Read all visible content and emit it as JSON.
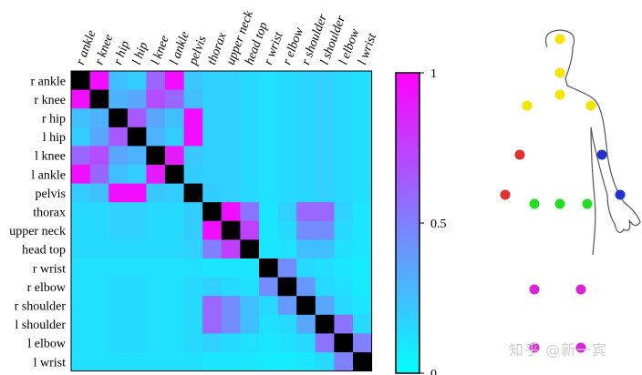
{
  "chart_data": {
    "type": "heatmap",
    "labels": [
      "r ankle",
      "r knee",
      "r hip",
      "l hip",
      "l knee",
      "l ankle",
      "pelvis",
      "thorax",
      "upper neck",
      "head top",
      "r wrist",
      "r elbow",
      "r shoulder",
      "l shoulder",
      "l elbow",
      "l wrist"
    ],
    "matrix": [
      [
        1.0,
        0.95,
        0.25,
        0.2,
        0.6,
        0.95,
        0.22,
        0.18,
        0.18,
        0.15,
        0.12,
        0.14,
        0.16,
        0.18,
        0.15,
        0.12
      ],
      [
        0.95,
        1.0,
        0.3,
        0.35,
        0.7,
        0.6,
        0.25,
        0.18,
        0.18,
        0.15,
        0.12,
        0.14,
        0.16,
        0.18,
        0.15,
        0.12
      ],
      [
        0.25,
        0.3,
        1.0,
        0.65,
        0.35,
        0.25,
        0.95,
        0.18,
        0.18,
        0.15,
        0.12,
        0.14,
        0.16,
        0.18,
        0.15,
        0.12
      ],
      [
        0.2,
        0.35,
        0.65,
        1.0,
        0.3,
        0.2,
        0.95,
        0.18,
        0.18,
        0.15,
        0.12,
        0.14,
        0.16,
        0.18,
        0.15,
        0.12
      ],
      [
        0.6,
        0.7,
        0.35,
        0.3,
        1.0,
        0.9,
        0.22,
        0.18,
        0.18,
        0.15,
        0.12,
        0.14,
        0.16,
        0.18,
        0.15,
        0.12
      ],
      [
        0.95,
        0.6,
        0.25,
        0.2,
        0.9,
        1.0,
        0.2,
        0.18,
        0.18,
        0.15,
        0.12,
        0.14,
        0.16,
        0.18,
        0.15,
        0.12
      ],
      [
        0.2,
        0.25,
        0.95,
        0.95,
        0.22,
        0.2,
        1.0,
        0.2,
        0.18,
        0.15,
        0.12,
        0.14,
        0.16,
        0.18,
        0.15,
        0.12
      ],
      [
        0.15,
        0.15,
        0.18,
        0.18,
        0.15,
        0.15,
        0.2,
        1.0,
        0.95,
        0.55,
        0.1,
        0.18,
        0.6,
        0.6,
        0.18,
        0.1
      ],
      [
        0.15,
        0.15,
        0.18,
        0.18,
        0.15,
        0.15,
        0.2,
        0.95,
        1.0,
        0.75,
        0.1,
        0.15,
        0.45,
        0.45,
        0.15,
        0.1
      ],
      [
        0.15,
        0.15,
        0.15,
        0.15,
        0.15,
        0.15,
        0.18,
        0.5,
        0.75,
        1.0,
        0.1,
        0.12,
        0.25,
        0.25,
        0.12,
        0.1
      ],
      [
        0.12,
        0.12,
        0.12,
        0.12,
        0.12,
        0.12,
        0.12,
        0.1,
        0.1,
        0.1,
        1.0,
        0.45,
        0.15,
        0.12,
        0.1,
        0.08
      ],
      [
        0.12,
        0.12,
        0.15,
        0.15,
        0.12,
        0.12,
        0.15,
        0.18,
        0.15,
        0.12,
        0.45,
        1.0,
        0.4,
        0.15,
        0.12,
        0.08
      ],
      [
        0.12,
        0.12,
        0.15,
        0.15,
        0.12,
        0.12,
        0.15,
        0.6,
        0.45,
        0.25,
        0.15,
        0.4,
        1.0,
        0.35,
        0.15,
        0.1
      ],
      [
        0.12,
        0.12,
        0.15,
        0.15,
        0.12,
        0.12,
        0.15,
        0.6,
        0.45,
        0.25,
        0.12,
        0.15,
        0.35,
        1.0,
        0.55,
        0.15
      ],
      [
        0.12,
        0.12,
        0.15,
        0.15,
        0.12,
        0.12,
        0.15,
        0.18,
        0.15,
        0.12,
        0.1,
        0.12,
        0.15,
        0.55,
        1.0,
        0.5
      ],
      [
        0.12,
        0.12,
        0.12,
        0.12,
        0.12,
        0.12,
        0.12,
        0.1,
        0.1,
        0.1,
        0.08,
        0.08,
        0.1,
        0.15,
        0.5,
        1.0
      ]
    ],
    "colorbar": {
      "min": 0,
      "max": 1,
      "ticks": [
        "0",
        "0.5",
        "1"
      ],
      "tick_values": [
        0,
        0.5,
        1
      ]
    },
    "colormap": {
      "low": "#00ffff",
      "high": "#ff00ff",
      "diagonal": "#000000"
    }
  },
  "body_diagram": {
    "joints": [
      {
        "name": "head top",
        "color": "#f5e400"
      },
      {
        "name": "upper neck",
        "color": "#f5e400"
      },
      {
        "name": "thorax",
        "color": "#f5e400"
      },
      {
        "name": "r shoulder",
        "color": "#f5e400"
      },
      {
        "name": "l shoulder",
        "color": "#f5e400"
      },
      {
        "name": "r elbow",
        "color": "#e03030"
      },
      {
        "name": "r wrist",
        "color": "#e03030"
      },
      {
        "name": "l elbow",
        "color": "#2233cc"
      },
      {
        "name": "l wrist",
        "color": "#2233cc"
      },
      {
        "name": "r hip",
        "color": "#22dd22"
      },
      {
        "name": "pelvis",
        "color": "#22dd22"
      },
      {
        "name": "l hip",
        "color": "#22dd22"
      },
      {
        "name": "r knee",
        "color": "#dd22dd"
      },
      {
        "name": "l knee",
        "color": "#dd22dd"
      },
      {
        "name": "r ankle",
        "color": "#dd22dd"
      },
      {
        "name": "l ankle",
        "color": "#dd22dd"
      }
    ]
  },
  "watermark": "知乎 @新一宾"
}
